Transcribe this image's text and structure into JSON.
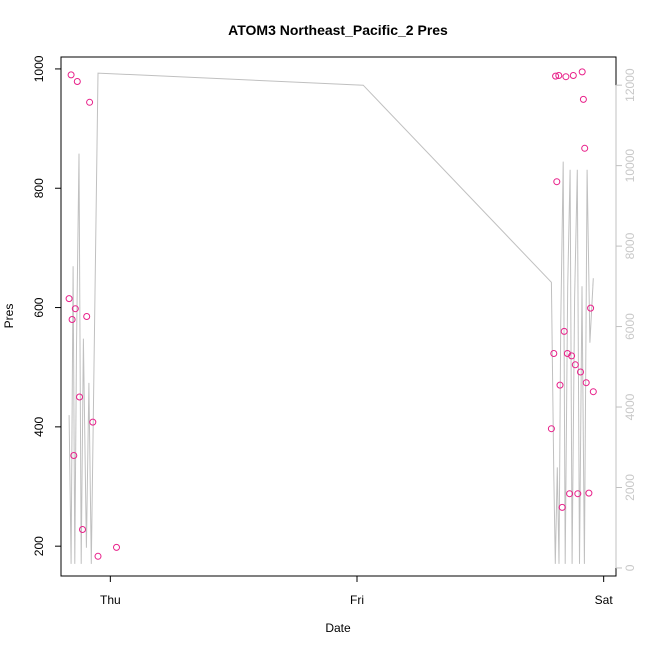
{
  "chart_data": {
    "type": "scatter",
    "title": "ATOM3 Northeast_Pacific_2 Pres",
    "xlabel": "Date",
    "ylabel": "Pres",
    "x_ticks": [
      {
        "label": "Thu",
        "value": 0
      },
      {
        "label": "Fri",
        "value": 1
      },
      {
        "label": "Sat",
        "value": 2
      }
    ],
    "xlim": [
      -0.2,
      2.05
    ],
    "ylim": [
      150,
      1020
    ],
    "y_ticks": [
      200,
      400,
      600,
      800,
      1000
    ],
    "y2lim": [
      -200,
      12700
    ],
    "y2_ticks": [
      0,
      2000,
      4000,
      6000,
      8000,
      10000,
      12000
    ],
    "points_color": "#e8208a",
    "line_color": "#c0c0c0",
    "series": [
      {
        "values": [
          [
            -0.167,
            615
          ],
          [
            -0.159,
            990
          ],
          [
            -0.155,
            580
          ],
          [
            -0.148,
            352
          ],
          [
            -0.142,
            598
          ],
          [
            -0.134,
            979
          ],
          [
            -0.125,
            450
          ],
          [
            -0.113,
            228
          ],
          [
            -0.096,
            585
          ],
          [
            -0.084,
            944
          ],
          [
            -0.071,
            408
          ],
          [
            -0.05,
            183
          ],
          [
            0.025,
            198
          ],
          [
            1.788,
            397
          ],
          [
            1.798,
            523
          ],
          [
            1.805,
            988
          ],
          [
            1.81,
            811
          ],
          [
            1.818,
            989
          ],
          [
            1.823,
            470
          ],
          [
            1.832,
            265
          ],
          [
            1.84,
            560
          ],
          [
            1.847,
            987
          ],
          [
            1.853,
            523
          ],
          [
            1.862,
            288
          ],
          [
            1.87,
            519
          ],
          [
            1.877,
            989
          ],
          [
            1.885,
            504
          ],
          [
            1.895,
            288
          ],
          [
            1.906,
            492
          ],
          [
            1.913,
            995
          ],
          [
            1.918,
            949
          ],
          [
            1.923,
            867
          ],
          [
            1.929,
            474
          ],
          [
            1.94,
            289
          ],
          [
            1.947,
            599
          ],
          [
            1.958,
            459
          ]
        ]
      },
      {
        "values": [
          [
            -0.167,
            3800
          ],
          [
            -0.159,
            100
          ],
          [
            -0.151,
            7500
          ],
          [
            -0.144,
            100
          ],
          [
            -0.137,
            5500
          ],
          [
            -0.127,
            10300
          ],
          [
            -0.118,
            100
          ],
          [
            -0.109,
            5700
          ],
          [
            -0.097,
            500
          ],
          [
            -0.087,
            4600
          ],
          [
            -0.077,
            100
          ],
          [
            -0.05,
            12300
          ],
          [
            1.025,
            12000
          ],
          [
            1.788,
            7100
          ],
          [
            1.798,
            2300
          ],
          [
            1.804,
            100
          ],
          [
            1.812,
            2500
          ],
          [
            1.819,
            100
          ],
          [
            1.826,
            6000
          ],
          [
            1.836,
            10100
          ],
          [
            1.844,
            100
          ],
          [
            1.854,
            7000
          ],
          [
            1.864,
            9900
          ],
          [
            1.872,
            100
          ],
          [
            1.882,
            6700
          ],
          [
            1.893,
            9900
          ],
          [
            1.902,
            100
          ],
          [
            1.912,
            7000
          ],
          [
            1.922,
            100
          ],
          [
            1.933,
            9900
          ],
          [
            1.944,
            5600
          ],
          [
            1.958,
            7200
          ],
          [
            1.956,
            7000
          ]
        ]
      }
    ]
  }
}
